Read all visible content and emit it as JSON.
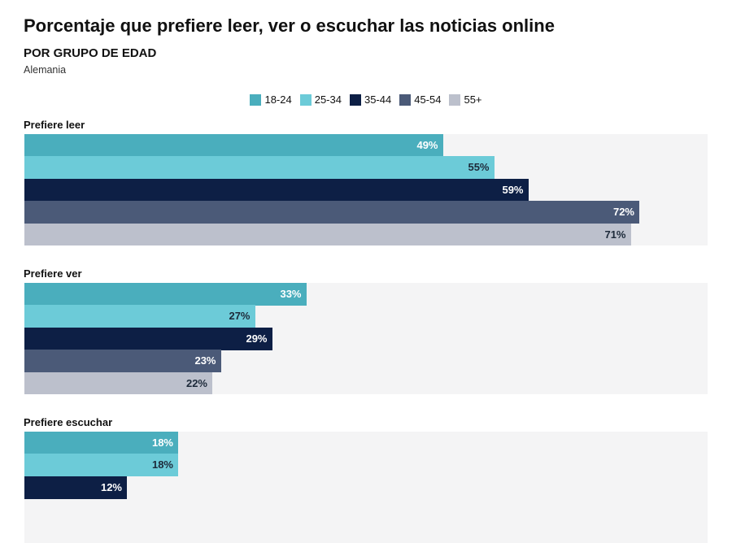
{
  "header": {
    "title": "Porcentaje que prefiere leer, ver o escuchar las noticias online",
    "subtitle": "POR GRUPO DE EDAD",
    "region": "Alemania"
  },
  "chart_data": {
    "type": "bar",
    "orientation": "horizontal",
    "title": "Porcentaje que prefiere leer, ver o escuchar las noticias online",
    "xlim": [
      0,
      80
    ],
    "legend_position": "top",
    "categories": [
      "Prefiere leer",
      "Prefiere ver",
      "Prefiere escuchar"
    ],
    "series": [
      {
        "name": "18-24",
        "color": "#4aaebd",
        "label_color": "#ffffff",
        "values": [
          49,
          33,
          18
        ]
      },
      {
        "name": "25-34",
        "color": "#6ccbd8",
        "label_color": "#1d2a3a",
        "values": [
          55,
          27,
          18
        ]
      },
      {
        "name": "35-44",
        "color": "#0d1f45",
        "label_color": "#ffffff",
        "values": [
          59,
          29,
          12
        ]
      },
      {
        "name": "45-54",
        "color": "#4b5a78",
        "label_color": "#ffffff",
        "values": [
          72,
          23,
          null
        ]
      },
      {
        "name": "55+",
        "color": "#bcc0cc",
        "label_color": "#1d2a3a",
        "values": [
          71,
          22,
          null
        ]
      }
    ]
  }
}
